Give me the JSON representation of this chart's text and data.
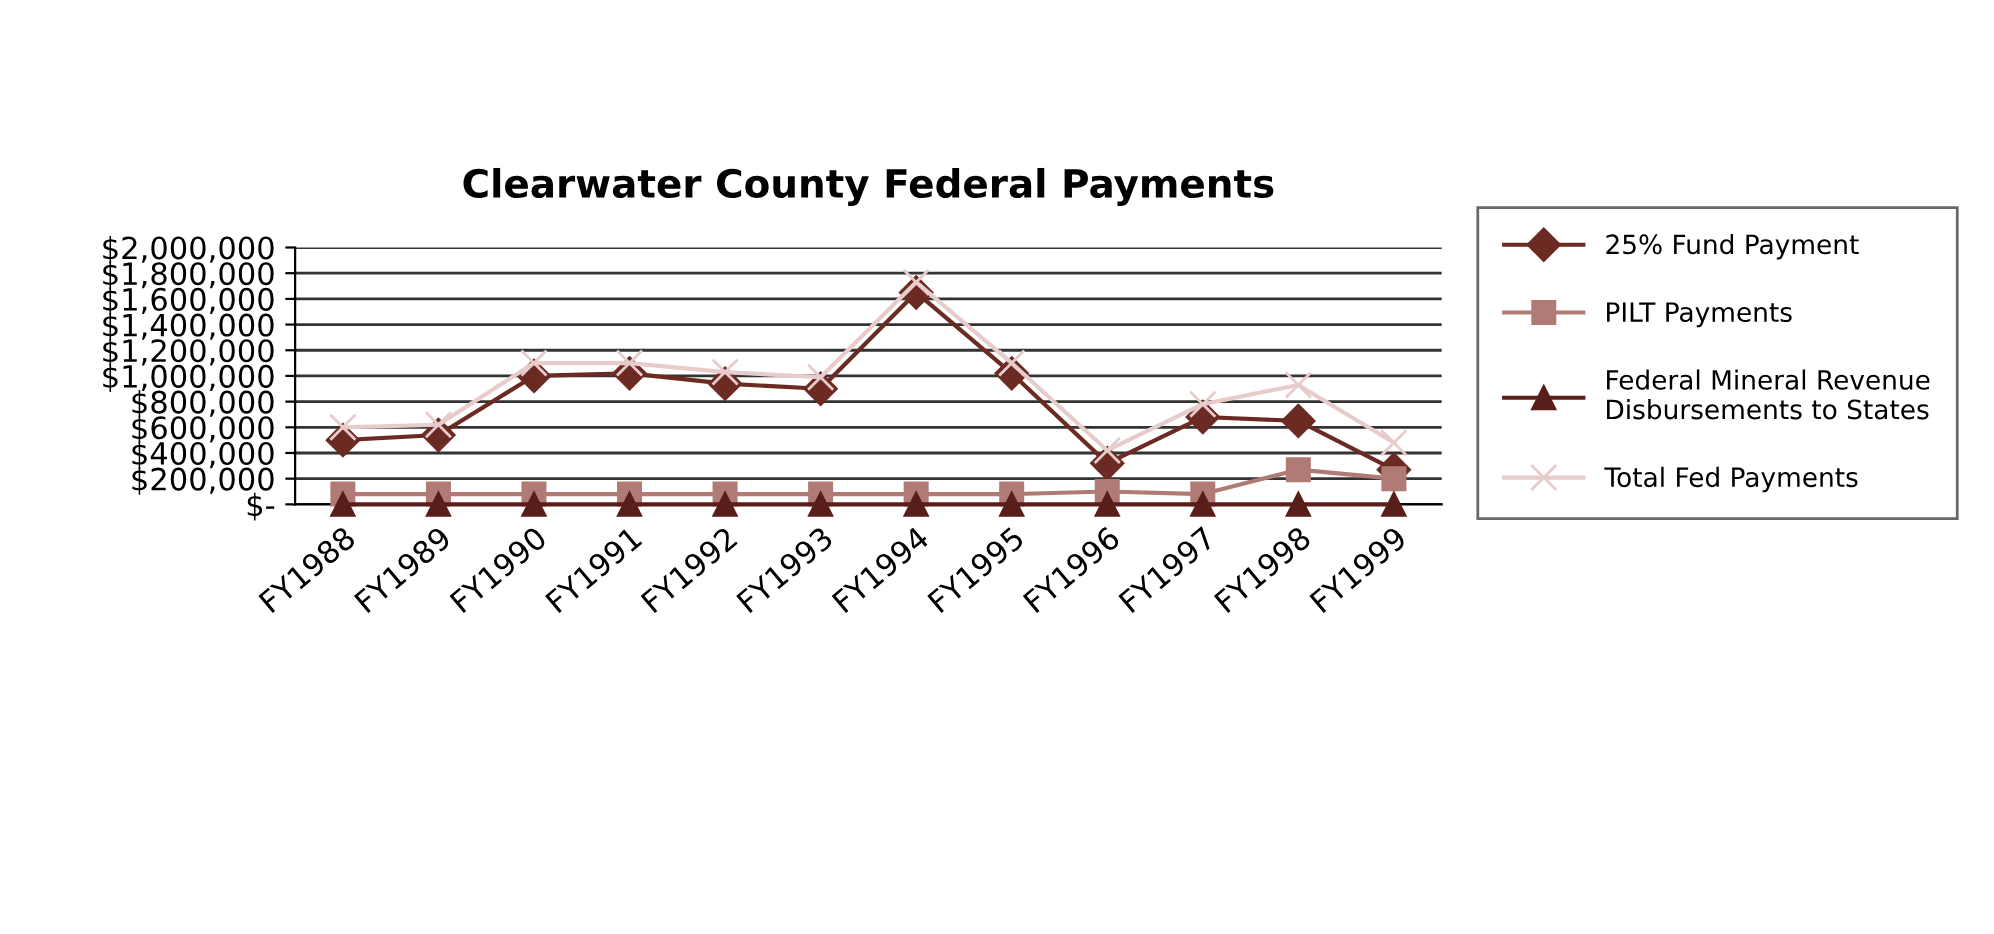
{
  "chart_data": {
    "type": "line",
    "title": "Clearwater County Federal Payments",
    "categories": [
      "FY1988",
      "FY1989",
      "FY1990",
      "FY1991",
      "FY1992",
      "FY1993",
      "FY1994",
      "FY1995",
      "FY1996",
      "FY1997",
      "FY1998",
      "FY1999"
    ],
    "series": [
      {
        "name": "25% Fund Payment",
        "color": "#6b2a22",
        "marker": "diamond",
        "values": [
          500000,
          540000,
          1000000,
          1020000,
          940000,
          900000,
          1650000,
          1020000,
          320000,
          680000,
          650000,
          270000
        ]
      },
      {
        "name": "PILT Payments",
        "color": "#b07a75",
        "marker": "square",
        "values": [
          80000,
          80000,
          80000,
          80000,
          80000,
          80000,
          80000,
          80000,
          100000,
          80000,
          270000,
          200000
        ]
      },
      {
        "name": "Federal Mineral Revenue\nDisbursements to States",
        "color": "#5a1e1a",
        "marker": "triangle",
        "values": [
          0,
          0,
          0,
          0,
          0,
          0,
          0,
          0,
          0,
          0,
          0,
          0
        ]
      },
      {
        "name": "Total Fed Payments",
        "color": "#e8cccc",
        "marker": "cross",
        "values": [
          600000,
          620000,
          1100000,
          1100000,
          1030000,
          990000,
          1730000,
          1100000,
          420000,
          780000,
          930000,
          480000
        ]
      }
    ],
    "ylim": [
      0,
      2000000
    ],
    "yticks": [
      {
        "value": 0,
        "label": "$-"
      },
      {
        "value": 200000,
        "label": "$200,000"
      },
      {
        "value": 400000,
        "label": "$400,000"
      },
      {
        "value": 600000,
        "label": "$600,000"
      },
      {
        "value": 800000,
        "label": "$800,000"
      },
      {
        "value": 1000000,
        "label": "$1,000,000"
      },
      {
        "value": 1200000,
        "label": "$1,200,000"
      },
      {
        "value": 1400000,
        "label": "$1,400,000"
      },
      {
        "value": 1600000,
        "label": "$1,600,000"
      },
      {
        "value": 1800000,
        "label": "$1,800,000"
      },
      {
        "value": 2000000,
        "label": "$2,000,000"
      }
    ],
    "grid": "y",
    "legend": "right"
  }
}
